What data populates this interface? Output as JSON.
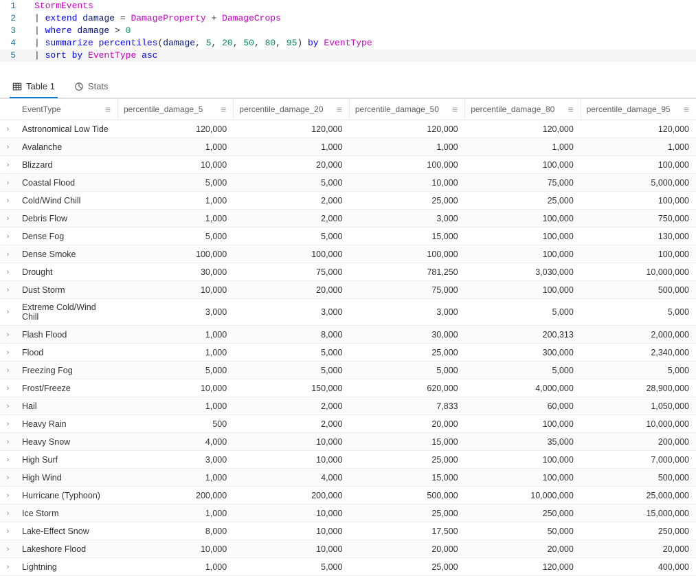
{
  "editor": {
    "lines": [
      [
        {
          "t": "ident",
          "v": "StormEvents"
        }
      ],
      [
        {
          "t": "pipe",
          "v": "| "
        },
        {
          "t": "kw",
          "v": "extend"
        },
        {
          "t": "plain",
          "v": " damage "
        },
        {
          "t": "op",
          "v": "= "
        },
        {
          "t": "field",
          "v": "DamageProperty"
        },
        {
          "t": "op",
          "v": " + "
        },
        {
          "t": "field",
          "v": "DamageCrops"
        }
      ],
      [
        {
          "t": "pipe",
          "v": "| "
        },
        {
          "t": "kw",
          "v": "where"
        },
        {
          "t": "plain",
          "v": " damage "
        },
        {
          "t": "op",
          "v": "> "
        },
        {
          "t": "num",
          "v": "0"
        }
      ],
      [
        {
          "t": "pipe",
          "v": "| "
        },
        {
          "t": "kw",
          "v": "summarize"
        },
        {
          "t": "plain",
          "v": " "
        },
        {
          "t": "func",
          "v": "percentiles"
        },
        {
          "t": "op",
          "v": "("
        },
        {
          "t": "plain",
          "v": "damage"
        },
        {
          "t": "op",
          "v": ", "
        },
        {
          "t": "num",
          "v": "5"
        },
        {
          "t": "op",
          "v": ", "
        },
        {
          "t": "num",
          "v": "20"
        },
        {
          "t": "op",
          "v": ", "
        },
        {
          "t": "num",
          "v": "50"
        },
        {
          "t": "op",
          "v": ", "
        },
        {
          "t": "num",
          "v": "80"
        },
        {
          "t": "op",
          "v": ", "
        },
        {
          "t": "num",
          "v": "95"
        },
        {
          "t": "op",
          "v": ") "
        },
        {
          "t": "kw",
          "v": "by"
        },
        {
          "t": "plain",
          "v": " "
        },
        {
          "t": "field",
          "v": "EventType"
        }
      ],
      [
        {
          "t": "pipe",
          "v": "| "
        },
        {
          "t": "kw",
          "v": "sort by"
        },
        {
          "t": "plain",
          "v": " "
        },
        {
          "t": "field",
          "v": "EventType"
        },
        {
          "t": "plain",
          "v": " "
        },
        {
          "t": "kw",
          "v": "asc"
        }
      ]
    ],
    "active_line_index": 4
  },
  "tabs": [
    {
      "label": "Table 1",
      "icon": "table",
      "active": true
    },
    {
      "label": "Stats",
      "icon": "stats",
      "active": false
    }
  ],
  "columns": [
    "EventType",
    "percentile_damage_5",
    "percentile_damage_20",
    "percentile_damage_50",
    "percentile_damage_80",
    "percentile_damage_95"
  ],
  "rows": [
    [
      "Astronomical Low Tide",
      "120,000",
      "120,000",
      "120,000",
      "120,000",
      "120,000"
    ],
    [
      "Avalanche",
      "1,000",
      "1,000",
      "1,000",
      "1,000",
      "1,000"
    ],
    [
      "Blizzard",
      "10,000",
      "20,000",
      "100,000",
      "100,000",
      "100,000"
    ],
    [
      "Coastal Flood",
      "5,000",
      "5,000",
      "10,000",
      "75,000",
      "5,000,000"
    ],
    [
      "Cold/Wind Chill",
      "1,000",
      "2,000",
      "25,000",
      "25,000",
      "100,000"
    ],
    [
      "Debris Flow",
      "1,000",
      "2,000",
      "3,000",
      "100,000",
      "750,000"
    ],
    [
      "Dense Fog",
      "5,000",
      "5,000",
      "15,000",
      "100,000",
      "130,000"
    ],
    [
      "Dense Smoke",
      "100,000",
      "100,000",
      "100,000",
      "100,000",
      "100,000"
    ],
    [
      "Drought",
      "30,000",
      "75,000",
      "781,250",
      "3,030,000",
      "10,000,000"
    ],
    [
      "Dust Storm",
      "10,000",
      "20,000",
      "75,000",
      "100,000",
      "500,000"
    ],
    [
      "Extreme Cold/Wind Chill",
      "3,000",
      "3,000",
      "3,000",
      "5,000",
      "5,000"
    ],
    [
      "Flash Flood",
      "1,000",
      "8,000",
      "30,000",
      "200,313",
      "2,000,000"
    ],
    [
      "Flood",
      "1,000",
      "5,000",
      "25,000",
      "300,000",
      "2,340,000"
    ],
    [
      "Freezing Fog",
      "5,000",
      "5,000",
      "5,000",
      "5,000",
      "5,000"
    ],
    [
      "Frost/Freeze",
      "10,000",
      "150,000",
      "620,000",
      "4,000,000",
      "28,900,000"
    ],
    [
      "Hail",
      "1,000",
      "2,000",
      "7,833",
      "60,000",
      "1,050,000"
    ],
    [
      "Heavy Rain",
      "500",
      "2,000",
      "20,000",
      "100,000",
      "10,000,000"
    ],
    [
      "Heavy Snow",
      "4,000",
      "10,000",
      "15,000",
      "35,000",
      "200,000"
    ],
    [
      "High Surf",
      "3,000",
      "10,000",
      "25,000",
      "100,000",
      "7,000,000"
    ],
    [
      "High Wind",
      "1,000",
      "4,000",
      "15,000",
      "100,000",
      "500,000"
    ],
    [
      "Hurricane (Typhoon)",
      "200,000",
      "200,000",
      "500,000",
      "10,000,000",
      "25,000,000"
    ],
    [
      "Ice Storm",
      "1,000",
      "10,000",
      "25,000",
      "250,000",
      "15,000,000"
    ],
    [
      "Lake-Effect Snow",
      "8,000",
      "10,000",
      "17,500",
      "50,000",
      "250,000"
    ],
    [
      "Lakeshore Flood",
      "10,000",
      "10,000",
      "20,000",
      "20,000",
      "20,000"
    ],
    [
      "Lightning",
      "1,000",
      "5,000",
      "25,000",
      "120,000",
      "400,000"
    ]
  ]
}
